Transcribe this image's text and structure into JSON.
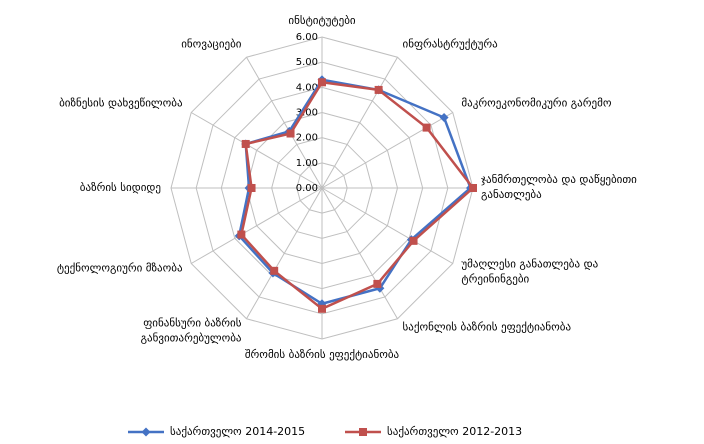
{
  "chart_data": {
    "type": "radar",
    "categories": [
      "ინსტიტუტები",
      "ინფრასტრუქტურა",
      "მაკროეკონომიკური გარემო",
      "ჯანმრთელობა და დაწყებითი\nგანათლება",
      "უმაღლესი განათლება და\nტრეინინგები",
      "საქონლის ბაზრის ეფექტიანობა",
      "შრომის ბაზრის ეფექტიანობა",
      "ფინანსური ბაზრის\nგანვითარებულობა",
      "ტექნოლოგიური მზაობა",
      "ბაზრის სიდიდე",
      "ბიზნესის დახვეწილობა",
      "ინოვაციები"
    ],
    "series": [
      {
        "name": "საქართველო 2014-2015",
        "color": "#4472c4",
        "marker": "diamond",
        "values": [
          4.3,
          4.5,
          5.6,
          5.9,
          4.1,
          4.6,
          4.6,
          3.9,
          3.8,
          2.9,
          3.5,
          2.6
        ]
      },
      {
        "name": "საქართველო 2012-2013",
        "color": "#c0504d",
        "marker": "square",
        "values": [
          4.2,
          4.5,
          4.8,
          6.0,
          4.2,
          4.4,
          4.8,
          3.8,
          3.7,
          2.8,
          3.5,
          2.5
        ]
      }
    ],
    "ylim": [
      0,
      6
    ],
    "yticks": [
      {
        "value": 0,
        "label": "0.00"
      },
      {
        "value": 1,
        "label": "1.00"
      },
      {
        "value": 2,
        "label": "2.00"
      },
      {
        "value": 3,
        "label": "3.00"
      },
      {
        "value": 4,
        "label": "4.00"
      },
      {
        "value": 5,
        "label": "5.00"
      },
      {
        "value": 6,
        "label": "6.00"
      }
    ],
    "grid": true
  }
}
